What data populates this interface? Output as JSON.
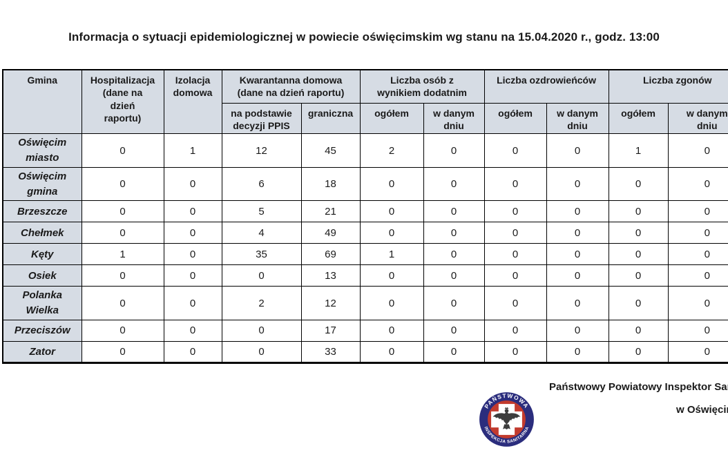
{
  "title": "Informacja o sytuacji epidemiologicznej w powiecie oświęcimskim wg stanu na 15.04.2020 r., godz. 13:00",
  "table": {
    "headers": {
      "gmina": "Gmina",
      "hospitalizacja": "Hospitalizacja\n(dane na\ndzień\nraportu)",
      "izolacja": "Izolacja\ndomowa",
      "kwarantanna": "Kwarantanna domowa\n(dane na dzień raportu)",
      "kwarantanna_sub_ppis": "na podstawie\ndecyzji PPIS",
      "kwarantanna_sub_graniczna": "graniczna",
      "wynik_dodatni": "Liczba osób z\nwynikiem dodatnim",
      "ozdrowiency": "Liczba ozdrowieńców",
      "zgony": "Liczba zgonów",
      "ogolem": "ogółem",
      "w_danym_dniu": "w danym\ndniu"
    },
    "rows": [
      {
        "gmina": "Oświęcim\nmiasto",
        "values": [
          0,
          1,
          12,
          45,
          2,
          0,
          0,
          0,
          1,
          0
        ]
      },
      {
        "gmina": "Oświęcim\ngmina",
        "values": [
          0,
          0,
          6,
          18,
          0,
          0,
          0,
          0,
          0,
          0
        ]
      },
      {
        "gmina": "Brzeszcze",
        "values": [
          0,
          0,
          5,
          21,
          0,
          0,
          0,
          0,
          0,
          0
        ]
      },
      {
        "gmina": "Chełmek",
        "values": [
          0,
          0,
          4,
          49,
          0,
          0,
          0,
          0,
          0,
          0
        ]
      },
      {
        "gmina": "Kęty",
        "values": [
          1,
          0,
          35,
          69,
          1,
          0,
          0,
          0,
          0,
          0
        ]
      },
      {
        "gmina": "Osiek",
        "values": [
          0,
          0,
          0,
          13,
          0,
          0,
          0,
          0,
          0,
          0
        ]
      },
      {
        "gmina": "Polanka\nWielka",
        "values": [
          0,
          0,
          2,
          12,
          0,
          0,
          0,
          0,
          0,
          0
        ]
      },
      {
        "gmina": "Przeciszów",
        "values": [
          0,
          0,
          0,
          17,
          0,
          0,
          0,
          0,
          0,
          0
        ]
      },
      {
        "gmina": "Zator",
        "values": [
          0,
          0,
          0,
          33,
          0,
          0,
          0,
          0,
          0,
          0
        ]
      }
    ]
  },
  "footer": {
    "line1": "Państwowy Powiatowy Inspektor Sanitarny",
    "line2": "w Oświęcimiu",
    "logo": {
      "text_top": "PAŃSTWOWA",
      "text_bottom": "INSPEKCJA SANITARNA"
    }
  },
  "colors": {
    "header_bg": "#d6dce4",
    "border": "#000000",
    "logo_ring": "#2b2d7d",
    "logo_inner": "#c23b2e",
    "logo_text": "#ffffff"
  }
}
